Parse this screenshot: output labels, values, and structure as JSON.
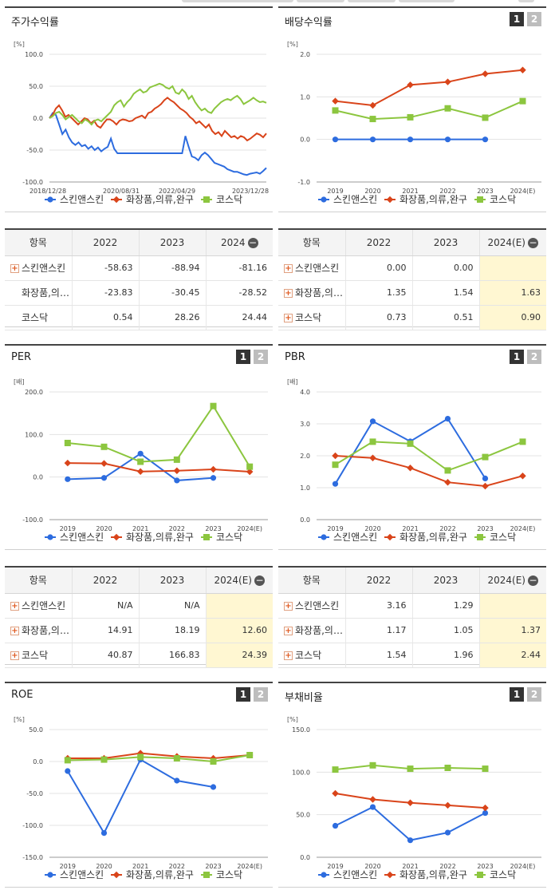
{
  "legend": [
    "스킨앤스킨",
    "화장품,의류,완구",
    "코스닥"
  ],
  "colors": {
    "s1": "#2d6cdf",
    "s2": "#d9441a",
    "s3": "#8cc63f"
  },
  "panels": {
    "stock": {
      "title": "주가수익률",
      "unit": "[%]",
      "yticks": [
        "100.0",
        "50.0",
        "0.0",
        "-50.0",
        "-100.0"
      ],
      "xlabels": [
        "2018/12/28",
        "2020/08/31",
        "2022/04/29",
        "2023/12/28"
      ]
    },
    "dividend": {
      "title": "배당수익률",
      "unit": "[%]",
      "yticks": [
        "2.0",
        "1.0",
        "0.0",
        "-1.0"
      ],
      "xlabels": [
        "2019",
        "2020",
        "2021",
        "2022",
        "2023",
        "2024(E)"
      ]
    },
    "per": {
      "title": "PER",
      "unit": "[배]",
      "yticks": [
        "200.0",
        "100.0",
        "0.0",
        "-100.0"
      ],
      "xlabels": [
        "2019",
        "2020",
        "2021",
        "2022",
        "2023",
        "2024(E)"
      ]
    },
    "pbr": {
      "title": "PBR",
      "unit": "[배]",
      "yticks": [
        "4.0",
        "3.0",
        "2.0",
        "1.0",
        "0.0"
      ],
      "xlabels": [
        "2019",
        "2020",
        "2021",
        "2022",
        "2023",
        "2024(E)"
      ]
    },
    "roe": {
      "title": "ROE",
      "unit": "[%]",
      "yticks": [
        "50.0",
        "0.0",
        "-50.0",
        "-100.0",
        "-150.0"
      ],
      "xlabels": [
        "2019",
        "2020",
        "2021",
        "2022",
        "2023",
        "2024(E)"
      ]
    },
    "debt": {
      "title": "부채비율",
      "unit": "[%]",
      "yticks": [
        "150.0",
        "100.0",
        "50.0",
        "0.0"
      ],
      "xlabels": [
        "2019",
        "2020",
        "2021",
        "2022",
        "2023",
        "2024(E)"
      ]
    }
  },
  "buttons": {
    "b1": "1",
    "b2": "2"
  },
  "tables": {
    "stock": {
      "headers": [
        "항목",
        "2022",
        "2023",
        "2024"
      ],
      "rows": [
        {
          "name": "스킨앤스킨",
          "v": [
            "-58.63",
            "-88.94",
            "-81.16"
          ]
        },
        {
          "name": "화장품,의…",
          "v": [
            "-23.83",
            "-30.45",
            "-28.52"
          ]
        },
        {
          "name": "코스닥",
          "v": [
            "0.54",
            "28.26",
            "24.44"
          ]
        }
      ]
    },
    "dividend": {
      "headers": [
        "항목",
        "2022",
        "2023",
        "2024(E)"
      ],
      "rows": [
        {
          "name": "스킨앤스킨",
          "v": [
            "0.00",
            "0.00",
            ""
          ]
        },
        {
          "name": "화장품,의…",
          "v": [
            "1.35",
            "1.54",
            "1.63"
          ]
        },
        {
          "name": "코스닥",
          "v": [
            "0.73",
            "0.51",
            "0.90"
          ]
        }
      ]
    },
    "per": {
      "headers": [
        "항목",
        "2022",
        "2023",
        "2024(E)"
      ],
      "rows": [
        {
          "name": "스킨앤스킨",
          "v": [
            "N/A",
            "N/A",
            ""
          ]
        },
        {
          "name": "화장품,의…",
          "v": [
            "14.91",
            "18.19",
            "12.60"
          ]
        },
        {
          "name": "코스닥",
          "v": [
            "40.87",
            "166.83",
            "24.39"
          ]
        }
      ]
    },
    "pbr": {
      "headers": [
        "항목",
        "2022",
        "2023",
        "2024(E)"
      ],
      "rows": [
        {
          "name": "스킨앤스킨",
          "v": [
            "3.16",
            "1.29",
            ""
          ]
        },
        {
          "name": "화장품,의…",
          "v": [
            "1.17",
            "1.05",
            "1.37"
          ]
        },
        {
          "name": "코스닥",
          "v": [
            "1.54",
            "1.96",
            "2.44"
          ]
        }
      ]
    }
  },
  "chart_data": [
    {
      "type": "line",
      "id": "stock",
      "ylim": [
        -100,
        100
      ],
      "x_range": [
        "2018/12/28",
        "2024/06"
      ],
      "series": [
        {
          "name": "스킨앤스킨",
          "values": [
            0,
            8,
            5,
            -10,
            -25,
            -18,
            -30,
            -38,
            -42,
            -38,
            -44,
            -42,
            -48,
            -44,
            -50,
            -46,
            -52,
            -48,
            -45,
            -32,
            -48,
            -55,
            -55,
            -55,
            -55,
            -55,
            -55,
            -55,
            -55,
            -55,
            -55,
            -55,
            -55,
            -55,
            -55,
            -55,
            -55,
            -55,
            -55,
            -55,
            -55,
            -55,
            -28,
            -45,
            -60,
            -62,
            -66,
            -58,
            -54,
            -58,
            -64,
            -70,
            -72,
            -74,
            -76,
            -80,
            -82,
            -84,
            -84,
            -86,
            -88,
            -89,
            -87,
            -86,
            -85,
            -87,
            -83,
            -78
          ]
        },
        {
          "name": "화장품,의류,완구",
          "values": [
            0,
            5,
            15,
            20,
            12,
            2,
            5,
            0,
            -5,
            -10,
            -5,
            0,
            -2,
            -8,
            -4,
            -12,
            -15,
            -8,
            -2,
            -2,
            -5,
            -10,
            -4,
            -2,
            -3,
            -5,
            -4,
            0,
            2,
            4,
            0,
            8,
            10,
            15,
            18,
            22,
            28,
            32,
            28,
            25,
            20,
            15,
            12,
            8,
            2,
            -2,
            -8,
            -5,
            -10,
            -15,
            -10,
            -20,
            -25,
            -22,
            -28,
            -20,
            -25,
            -30,
            -28,
            -32,
            -28,
            -30,
            -35,
            -32,
            -28,
            -24,
            -26,
            -30,
            -24
          ]
        },
        {
          "name": "코스닥",
          "values": [
            0,
            3,
            8,
            10,
            5,
            -2,
            2,
            5,
            0,
            -5,
            -8,
            -2,
            -5,
            -10,
            -4,
            -2,
            -5,
            0,
            5,
            10,
            20,
            25,
            28,
            18,
            25,
            30,
            38,
            42,
            45,
            40,
            42,
            48,
            50,
            52,
            54,
            52,
            48,
            46,
            50,
            40,
            38,
            45,
            40,
            30,
            35,
            25,
            18,
            12,
            15,
            10,
            8,
            15,
            20,
            25,
            28,
            30,
            28,
            32,
            35,
            30,
            22,
            25,
            28,
            32,
            28,
            25,
            26,
            24
          ]
        }
      ]
    },
    {
      "type": "line",
      "id": "dividend",
      "ylim": [
        -1,
        2
      ],
      "categories": [
        "2019",
        "2020",
        "2021",
        "2022",
        "2023",
        "2024(E)"
      ],
      "series": [
        {
          "name": "스킨앤스킨",
          "values": [
            0,
            0,
            0,
            0,
            0,
            null
          ]
        },
        {
          "name": "화장품,의류,완구",
          "values": [
            0.9,
            0.8,
            1.28,
            1.35,
            1.54,
            1.63
          ]
        },
        {
          "name": "코스닥",
          "values": [
            0.68,
            0.48,
            0.52,
            0.73,
            0.51,
            0.9
          ]
        }
      ]
    },
    {
      "type": "line",
      "id": "per",
      "ylim": [
        -100,
        200
      ],
      "categories": [
        "2019",
        "2020",
        "2021",
        "2022",
        "2023",
        "2024(E)"
      ],
      "series": [
        {
          "name": "스킨앤스킨",
          "values": [
            -5,
            -2,
            55,
            -8,
            -2,
            null
          ]
        },
        {
          "name": "화장품,의류,완구",
          "values": [
            33,
            32,
            13,
            14.91,
            18.19,
            12.6
          ]
        },
        {
          "name": "코스닥",
          "values": [
            80,
            71,
            36,
            40.87,
            166.83,
            24.39
          ]
        }
      ]
    },
    {
      "type": "line",
      "id": "pbr",
      "ylim": [
        0,
        4
      ],
      "categories": [
        "2019",
        "2020",
        "2021",
        "2022",
        "2023",
        "2024(E)"
      ],
      "series": [
        {
          "name": "스킨앤스킨",
          "values": [
            1.12,
            3.08,
            2.45,
            3.16,
            1.29,
            null
          ]
        },
        {
          "name": "화장품,의류,완구",
          "values": [
            2.0,
            1.93,
            1.62,
            1.17,
            1.05,
            1.37
          ]
        },
        {
          "name": "코스닥",
          "values": [
            1.72,
            2.44,
            2.38,
            1.54,
            1.96,
            2.44
          ]
        }
      ]
    },
    {
      "type": "line",
      "id": "roe",
      "ylim": [
        -150,
        50
      ],
      "categories": [
        "2019",
        "2020",
        "2021",
        "2022",
        "2023",
        "2024(E)"
      ],
      "series": [
        {
          "name": "스킨앤스킨",
          "values": [
            -15,
            -112,
            3,
            -30,
            -40,
            null
          ]
        },
        {
          "name": "화장품,의류,완구",
          "values": [
            5,
            5,
            13,
            8,
            5,
            10
          ]
        },
        {
          "name": "코스닥",
          "values": [
            2,
            3,
            7,
            5,
            0,
            10
          ]
        }
      ]
    },
    {
      "type": "line",
      "id": "debt",
      "ylim": [
        0,
        150
      ],
      "categories": [
        "2019",
        "2020",
        "2021",
        "2022",
        "2023",
        "2024(E)"
      ],
      "series": [
        {
          "name": "스킨앤스킨",
          "values": [
            37,
            59,
            20,
            29,
            52,
            null
          ]
        },
        {
          "name": "화장품,의류,완구",
          "values": [
            75,
            68,
            64,
            61,
            58,
            null
          ]
        },
        {
          "name": "코스닥",
          "values": [
            103,
            108,
            104,
            105,
            104,
            null
          ]
        }
      ]
    }
  ]
}
